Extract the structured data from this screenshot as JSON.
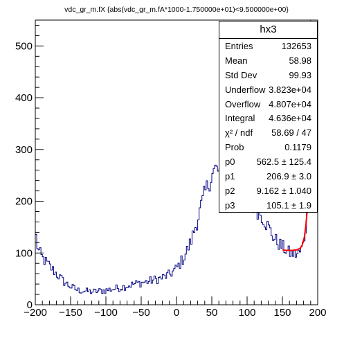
{
  "chart_title": "vdc_gr_m.fX {abs(vdc_gr_m.fA*1000-1.750000e+01)<9.500000e+00}",
  "stats_box": {
    "title": "hx3",
    "rows": [
      {
        "label": "Entries",
        "value": "132653"
      },
      {
        "label": "Mean",
        "value": "58.98"
      },
      {
        "label": "Std Dev",
        "value": "99.93"
      },
      {
        "label": "Underflow",
        "value": "3.823e+04"
      },
      {
        "label": "Overflow",
        "value": "4.807e+04"
      },
      {
        "label": "Integral",
        "value": "4.636e+04"
      },
      {
        "label": "χ² / ndf",
        "value": "58.69 / 47"
      },
      {
        "label": "Prob",
        "value": "0.1179"
      },
      {
        "label": "p0",
        "value": "562.5 ± 125.4"
      },
      {
        "label": "p1",
        "value": "206.9 ± 3.0"
      },
      {
        "label": "p2",
        "value": "9.162 ± 1.040"
      },
      {
        "label": "p3",
        "value": "105.1 ± 1.9"
      }
    ]
  },
  "chart_data": {
    "type": "histogram",
    "title": "vdc_gr_m.fX {abs(vdc_gr_m.fA*1000-1.750000e+01)<9.500000e+00}",
    "xlabel": "",
    "ylabel": "",
    "xlim": [
      -200,
      200
    ],
    "ylim": [
      0,
      550
    ],
    "x_ticks": [
      -200,
      -150,
      -100,
      -50,
      0,
      50,
      100,
      150,
      200
    ],
    "y_ticks": [
      0,
      100,
      200,
      300,
      400,
      500
    ],
    "bin_width": 2,
    "line_color": "#000080",
    "fit_color": "#ff0000",
    "bin_shape": {
      "x": [
        -200,
        -196,
        -190,
        -180,
        -170,
        -160,
        -150,
        -140,
        -120,
        -100,
        -80,
        -60,
        -40,
        -20,
        -10,
        0,
        10,
        20,
        30,
        40,
        50,
        55,
        60,
        65,
        70,
        75,
        80,
        90,
        100,
        110,
        120,
        130,
        140,
        150,
        160,
        170,
        176,
        180,
        184,
        188
      ],
      "y": [
        140,
        105,
        90,
        75,
        60,
        45,
        35,
        28,
        25,
        28,
        33,
        40,
        45,
        52,
        58,
        70,
        90,
        120,
        165,
        215,
        250,
        262,
        258,
        248,
        240,
        233,
        232,
        218,
        205,
        190,
        175,
        150,
        125,
        112,
        100,
        97,
        102,
        120,
        160,
        225
      ]
    },
    "fit_curve": {
      "x": [
        150,
        155,
        160,
        165,
        170,
        175,
        178,
        181,
        183,
        185,
        187,
        189
      ],
      "y": [
        106,
        105,
        105,
        105,
        106,
        109,
        115,
        130,
        150,
        180,
        215,
        255
      ]
    }
  }
}
